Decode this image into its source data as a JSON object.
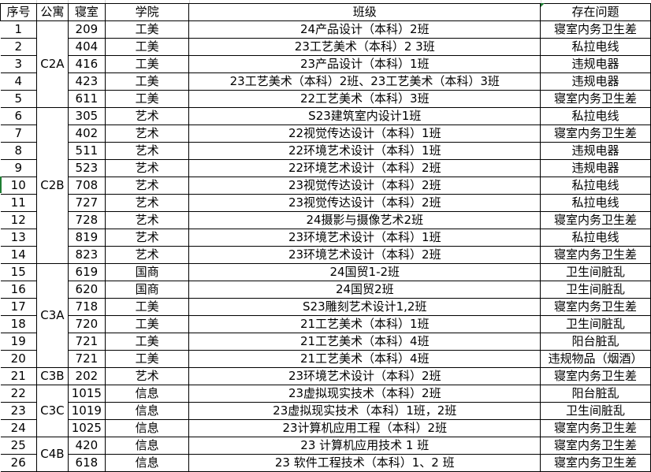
{
  "headers": {
    "no": "序号",
    "apt": "公寓",
    "room": "寝室",
    "college": "学院",
    "class": "班级",
    "issue": "存在问题"
  },
  "groups": [
    {
      "apt": "C2A",
      "rows": [
        {
          "no": "1",
          "room": "209",
          "college": "工美",
          "class": "24产品设计（本科）2班",
          "issue": "寝室内务卫生差"
        },
        {
          "no": "2",
          "room": "404",
          "college": "工美",
          "class": "23工艺美术（本科）2 3班",
          "issue": "私拉电线"
        },
        {
          "no": "3",
          "room": "416",
          "college": "工美",
          "class": "23产品设计（本科）1班",
          "issue": "违规电器"
        },
        {
          "no": "4",
          "room": "423",
          "college": "工美",
          "class": "23工艺美术（本科）2班、23工艺美术（本科）3班",
          "issue": "违规电器"
        },
        {
          "no": "5",
          "room": "611",
          "college": "工美",
          "class": "22工艺美术（本科）3班",
          "issue": "寝室内务卫生差"
        }
      ]
    },
    {
      "apt": "C2B",
      "rows": [
        {
          "no": "6",
          "room": "305",
          "college": "艺术",
          "class": "S23建筑室内设计1班",
          "issue": "私拉电线"
        },
        {
          "no": "7",
          "room": "402",
          "college": "艺术",
          "class": "22视觉传达设计（本科）1班",
          "issue": "寝室内务卫生差"
        },
        {
          "no": "8",
          "room": "511",
          "college": "艺术",
          "class": "22环境艺术设计（本科）1班",
          "issue": "违规电器"
        },
        {
          "no": "9",
          "room": "523",
          "college": "艺术",
          "class": "22环境艺术设计（本科）2班",
          "issue": "违规电器"
        },
        {
          "no": "10",
          "room": "708",
          "college": "艺术",
          "class": "23视觉传达设计（本科）2班",
          "issue": "私拉电线"
        },
        {
          "no": "11",
          "room": "727",
          "college": "艺术",
          "class": "23视觉传达设计（本科）2班",
          "issue": "私拉电线"
        },
        {
          "no": "12",
          "room": "728",
          "college": "艺术",
          "class": "24摄影与摄像艺术2班",
          "issue": "寝室内务卫生差"
        },
        {
          "no": "13",
          "room": "819",
          "college": "艺术",
          "class": "23环境艺术设计（本科）1班",
          "issue": "私拉电线"
        },
        {
          "no": "14",
          "room": "823",
          "college": "艺术",
          "class": "23环境艺术设计（本科）2班",
          "issue": "寝室内务卫生差"
        }
      ]
    },
    {
      "apt": "C3A",
      "rows": [
        {
          "no": "15",
          "room": "619",
          "college": "国商",
          "class": "24国贸1-2班",
          "issue": "卫生间脏乱"
        },
        {
          "no": "16",
          "room": "620",
          "college": "国商",
          "class": "24国贸2班",
          "issue": "卫生间脏乱"
        },
        {
          "no": "17",
          "room": "718",
          "college": "工美",
          "class": "S23雕刻艺术设计1,2班",
          "issue": "寝室内务卫生差"
        },
        {
          "no": "18",
          "room": "720",
          "college": "工美",
          "class": "21工艺美术（本科）1班",
          "issue": "卫生间脏乱"
        },
        {
          "no": "19",
          "room": "721",
          "college": "工美",
          "class": "21工艺美术（本科）4班",
          "issue": "阳台脏乱"
        },
        {
          "no": "20",
          "room": "721",
          "college": "工美",
          "class": "21工艺美术（本科）4班",
          "issue": "违规物品（烟酒）"
        }
      ]
    },
    {
      "apt": "C3B",
      "rows": [
        {
          "no": "21",
          "room": "202",
          "college": "艺术",
          "class": "23环境艺术设计（本科）2班",
          "issue": "寝室内务卫生差"
        }
      ]
    },
    {
      "apt": "C3C",
      "rows": [
        {
          "no": "22",
          "room": "1015",
          "college": "信息",
          "class": "23虚拟现实技术（本科）2班",
          "issue": "阳台脏乱"
        },
        {
          "no": "23",
          "room": "1019",
          "college": "信息",
          "class": "23虚拟现实技术（本科）1班，2班",
          "issue": "卫生间脏乱"
        },
        {
          "no": "24",
          "room": "1025",
          "college": "信息",
          "class": "23计算机应用工程（本科）2班",
          "issue": "寝室内务卫生差"
        }
      ]
    },
    {
      "apt": "C4B",
      "rows": [
        {
          "no": "25",
          "room": "420",
          "college": "信息",
          "class": "23 计算机应用技术 1 班",
          "issue": "寝室内务卫生差"
        },
        {
          "no": "26",
          "room": "618",
          "college": "信息",
          "class": "23 软件工程技术（本科）1、2 班",
          "issue": "寝室内务卫生差"
        }
      ]
    }
  ],
  "colors": {
    "grid": "#000000",
    "selection_marker": "#1e7d32"
  }
}
